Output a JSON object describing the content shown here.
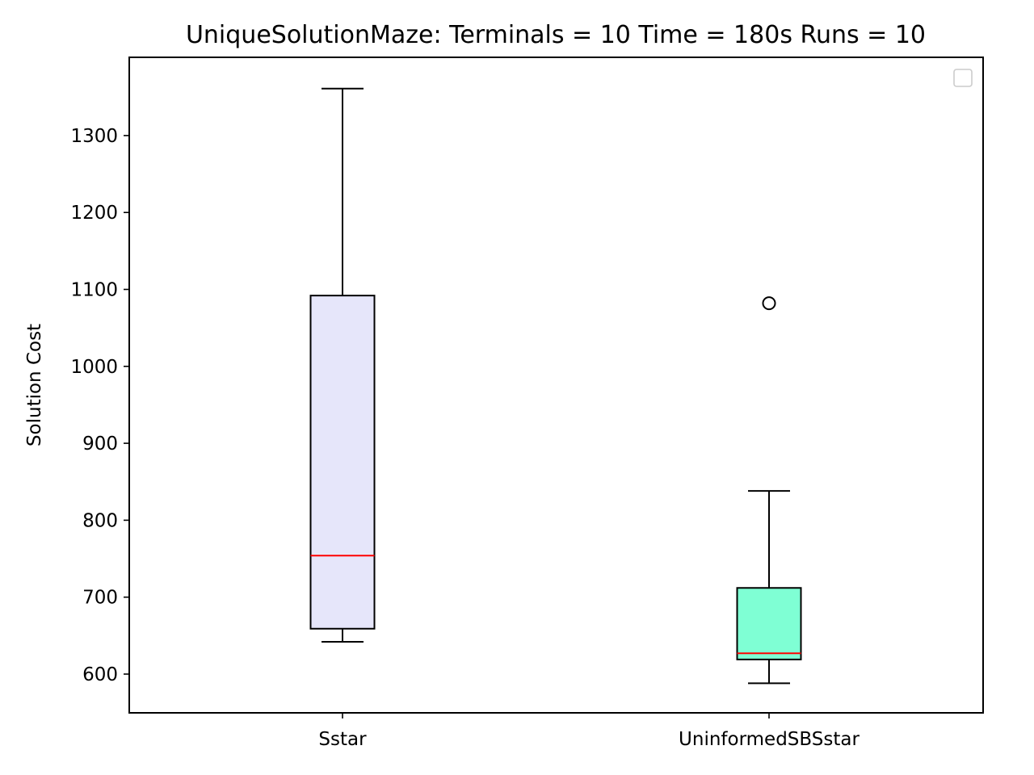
{
  "chart_data": {
    "type": "box",
    "title": "UniqueSolutionMaze:  Terminals = 10  Time = 180s  Runs = 10",
    "xlabel": "",
    "ylabel": "Solution Cost",
    "categories": [
      "Sstar",
      "UninformedSBSstar"
    ],
    "ylim": [
      550,
      1400
    ],
    "yticks": [
      600,
      700,
      800,
      900,
      1000,
      1100,
      1200,
      1300
    ],
    "grid": false,
    "legend": {
      "placement": "top-right",
      "entries": []
    },
    "series": [
      {
        "category": "Sstar",
        "whisker_low": 642,
        "q1": 659,
        "median": 754,
        "q3": 1092,
        "whisker_high": 1361,
        "outliers": [],
        "fill": "#e6e6fa"
      },
      {
        "category": "UninformedSBSstar",
        "whisker_low": 588,
        "q1": 619,
        "median": 627,
        "q3": 712,
        "whisker_high": 838,
        "outliers": [
          1082
        ],
        "fill": "#7fffd4"
      }
    ],
    "median_color": "#ff0000"
  }
}
